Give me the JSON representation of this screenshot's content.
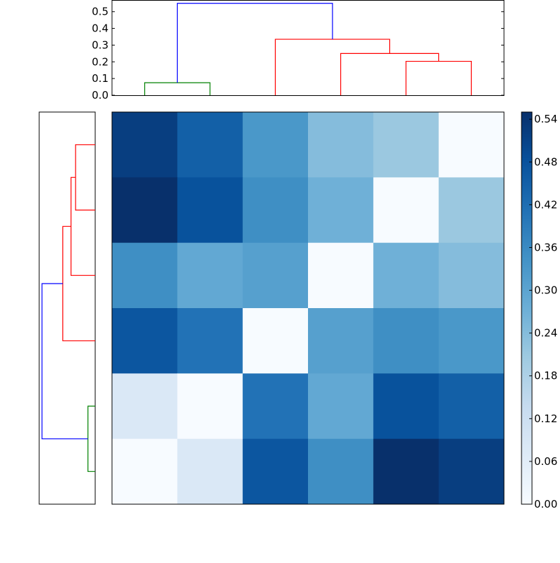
{
  "chart_data": [
    {
      "type": "heatmap",
      "title": "",
      "colormap": "Blues",
      "vmin": 0.0,
      "vmax": 0.55,
      "matrix": [
        [
          0.52,
          0.45,
          0.33,
          0.24,
          0.21,
          0.0
        ],
        [
          0.55,
          0.48,
          0.35,
          0.27,
          0.0,
          0.21
        ],
        [
          0.35,
          0.29,
          0.31,
          0.0,
          0.27,
          0.24
        ],
        [
          0.47,
          0.41,
          0.0,
          0.31,
          0.35,
          0.33
        ],
        [
          0.08,
          0.0,
          0.41,
          0.29,
          0.48,
          0.45
        ],
        [
          0.0,
          0.08,
          0.47,
          0.35,
          0.55,
          0.52
        ]
      ],
      "colorbar": {
        "ticks": [
          "0.00",
          "0.06",
          "0.12",
          "0.18",
          "0.24",
          "0.30",
          "0.36",
          "0.42",
          "0.48",
          "0.54"
        ]
      }
    },
    {
      "type": "dendrogram",
      "orientation": "top",
      "ylim": [
        0,
        0.57
      ],
      "yticks": [
        "0.0",
        "0.1",
        "0.2",
        "0.3",
        "0.4",
        "0.5"
      ],
      "links": [
        {
          "left": 0,
          "right": 1,
          "height": 0.075,
          "color": "#008000"
        },
        {
          "left": 4,
          "right": 5,
          "height": 0.203,
          "color": "#ff0000"
        },
        {
          "left": 3,
          "right": 4.5,
          "height": 0.25,
          "color": "#ff0000"
        },
        {
          "left": 2,
          "right": 3.75,
          "height": 0.335,
          "color": "#ff0000"
        },
        {
          "left": 0.5,
          "right": 2.875,
          "height": 0.55,
          "color": "#0000ff"
        }
      ]
    },
    {
      "type": "dendrogram",
      "orientation": "left",
      "note_leaves_bottom_to_top": true,
      "links": [
        {
          "left": 0,
          "right": 1,
          "height": 0.075,
          "color": "#008000"
        },
        {
          "left": 4,
          "right": 5,
          "height": 0.203,
          "color": "#ff0000"
        },
        {
          "left": 3,
          "right": 4.5,
          "height": 0.25,
          "color": "#ff0000"
        },
        {
          "left": 2,
          "right": 3.75,
          "height": 0.335,
          "color": "#ff0000"
        },
        {
          "left": 0.5,
          "right": 2.875,
          "height": 0.55,
          "color": "#0000ff"
        }
      ]
    }
  ]
}
